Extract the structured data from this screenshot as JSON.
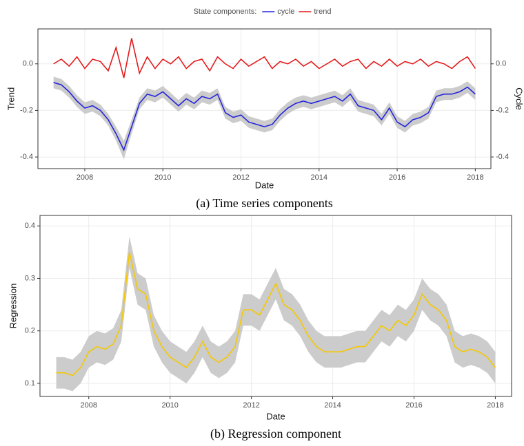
{
  "chart_data": [
    {
      "type": "line",
      "legend_title": "State components:",
      "legend": "top",
      "xlabel": "Date",
      "ylabel": "Trend",
      "y2label": "Cycle",
      "caption": "(a) Time series components",
      "grid": true,
      "band_color": "#cccccc",
      "x": [
        2007.2,
        2007.4,
        2007.6,
        2007.8,
        2008.0,
        2008.2,
        2008.4,
        2008.6,
        2008.8,
        2009.0,
        2009.2,
        2009.4,
        2009.6,
        2009.8,
        2010.0,
        2010.2,
        2010.4,
        2010.6,
        2010.8,
        2011.0,
        2011.2,
        2011.4,
        2011.6,
        2011.8,
        2012.0,
        2012.2,
        2012.4,
        2012.6,
        2012.8,
        2013.0,
        2013.2,
        2013.4,
        2013.6,
        2013.8,
        2014.0,
        2014.2,
        2014.4,
        2014.6,
        2014.8,
        2015.0,
        2015.2,
        2015.4,
        2015.6,
        2015.8,
        2016.0,
        2016.2,
        2016.4,
        2016.6,
        2016.8,
        2017.0,
        2017.2,
        2017.4,
        2017.6,
        2017.8,
        2018.0
      ],
      "xlim": [
        2006.8,
        2018.4
      ],
      "xticks": [
        2008,
        2010,
        2012,
        2014,
        2016,
        2018
      ],
      "ylim": [
        -0.45,
        0.15
      ],
      "yticks": [
        -0.4,
        -0.2,
        {
          "value": 0,
          "label": "0.0"
        }
      ],
      "y2lim": [
        -0.45,
        0.15
      ],
      "y2ticks": [
        -0.4,
        -0.2,
        {
          "value": 0,
          "label": "0.0"
        }
      ],
      "series": [
        {
          "name": "cycle",
          "color": "#2323dd",
          "axis": "y2",
          "values": [
            -0.08,
            -0.09,
            -0.12,
            -0.16,
            -0.19,
            -0.18,
            -0.2,
            -0.24,
            -0.3,
            -0.37,
            -0.27,
            -0.17,
            -0.13,
            -0.14,
            -0.12,
            -0.15,
            -0.18,
            -0.15,
            -0.17,
            -0.14,
            -0.15,
            -0.13,
            -0.21,
            -0.23,
            -0.22,
            -0.25,
            -0.26,
            -0.27,
            -0.26,
            -0.22,
            -0.19,
            -0.17,
            -0.16,
            -0.17,
            -0.16,
            -0.15,
            -0.14,
            -0.16,
            -0.13,
            -0.18,
            -0.19,
            -0.2,
            -0.24,
            -0.19,
            -0.25,
            -0.27,
            -0.24,
            -0.23,
            -0.21,
            -0.14,
            -0.13,
            -0.13,
            -0.12,
            -0.1,
            -0.13
          ],
          "upper": [
            -0.055,
            -0.065,
            -0.095,
            -0.135,
            -0.165,
            -0.155,
            -0.175,
            -0.215,
            -0.27,
            -0.33,
            -0.24,
            -0.145,
            -0.105,
            -0.115,
            -0.095,
            -0.125,
            -0.155,
            -0.125,
            -0.145,
            -0.115,
            -0.125,
            -0.105,
            -0.185,
            -0.205,
            -0.195,
            -0.225,
            -0.235,
            -0.245,
            -0.235,
            -0.195,
            -0.165,
            -0.145,
            -0.135,
            -0.145,
            -0.135,
            -0.125,
            -0.115,
            -0.135,
            -0.105,
            -0.155,
            -0.165,
            -0.175,
            -0.215,
            -0.165,
            -0.225,
            -0.245,
            -0.215,
            -0.205,
            -0.185,
            -0.115,
            -0.105,
            -0.105,
            -0.095,
            -0.075,
            -0.105
          ],
          "lower": [
            -0.105,
            -0.115,
            -0.145,
            -0.185,
            -0.215,
            -0.205,
            -0.225,
            -0.265,
            -0.33,
            -0.41,
            -0.3,
            -0.195,
            -0.155,
            -0.165,
            -0.145,
            -0.175,
            -0.205,
            -0.175,
            -0.195,
            -0.165,
            -0.175,
            -0.155,
            -0.235,
            -0.255,
            -0.245,
            -0.275,
            -0.285,
            -0.295,
            -0.285,
            -0.245,
            -0.215,
            -0.195,
            -0.185,
            -0.195,
            -0.185,
            -0.175,
            -0.165,
            -0.185,
            -0.155,
            -0.205,
            -0.215,
            -0.225,
            -0.265,
            -0.215,
            -0.275,
            -0.295,
            -0.265,
            -0.255,
            -0.235,
            -0.165,
            -0.155,
            -0.155,
            -0.145,
            -0.125,
            -0.155
          ]
        },
        {
          "name": "trend",
          "color": "#e31a1c",
          "values": [
            0.0,
            0.02,
            -0.01,
            0.03,
            -0.02,
            0.02,
            0.01,
            -0.03,
            0.07,
            -0.06,
            0.11,
            -0.04,
            0.03,
            -0.02,
            0.02,
            0.0,
            0.03,
            -0.02,
            0.01,
            0.02,
            -0.03,
            0.03,
            0.0,
            -0.02,
            0.02,
            -0.01,
            0.01,
            0.03,
            -0.02,
            0.01,
            0.0,
            0.02,
            -0.01,
            0.01,
            -0.02,
            0.0,
            0.02,
            -0.01,
            0.01,
            0.02,
            -0.02,
            0.01,
            -0.01,
            0.02,
            -0.01,
            0.01,
            0.0,
            0.02,
            -0.01,
            0.01,
            0.0,
            -0.02,
            0.01,
            0.03,
            -0.02
          ]
        }
      ]
    },
    {
      "type": "line",
      "xlabel": "Date",
      "ylabel": "Regression",
      "caption": "(b) Regression component",
      "grid": true,
      "band_color": "#cccccc",
      "x": [
        2007.2,
        2007.4,
        2007.6,
        2007.8,
        2008.0,
        2008.2,
        2008.4,
        2008.6,
        2008.8,
        2009.0,
        2009.2,
        2009.4,
        2009.6,
        2009.8,
        2010.0,
        2010.2,
        2010.4,
        2010.6,
        2010.8,
        2011.0,
        2011.2,
        2011.4,
        2011.6,
        2011.8,
        2012.0,
        2012.2,
        2012.4,
        2012.6,
        2012.8,
        2013.0,
        2013.2,
        2013.4,
        2013.6,
        2013.8,
        2014.0,
        2014.2,
        2014.4,
        2014.6,
        2014.8,
        2015.0,
        2015.2,
        2015.4,
        2015.6,
        2015.8,
        2016.0,
        2016.2,
        2016.4,
        2016.6,
        2016.8,
        2017.0,
        2017.2,
        2017.4,
        2017.6,
        2017.8,
        2018.0
      ],
      "xlim": [
        2006.8,
        2018.4
      ],
      "xticks": [
        2008,
        2010,
        2012,
        2014,
        2016,
        2018
      ],
      "ylim": [
        0.075,
        0.42
      ],
      "yticks": [
        0.1,
        0.2,
        0.3,
        0.4
      ],
      "series": [
        {
          "name": "regression",
          "color": "#f5c800",
          "values": [
            0.12,
            0.12,
            0.115,
            0.13,
            0.16,
            0.17,
            0.165,
            0.175,
            0.21,
            0.35,
            0.28,
            0.27,
            0.2,
            0.17,
            0.15,
            0.14,
            0.13,
            0.15,
            0.18,
            0.15,
            0.14,
            0.15,
            0.17,
            0.24,
            0.24,
            0.23,
            0.26,
            0.29,
            0.25,
            0.24,
            0.22,
            0.19,
            0.17,
            0.16,
            0.16,
            0.16,
            0.165,
            0.17,
            0.17,
            0.19,
            0.21,
            0.2,
            0.22,
            0.21,
            0.23,
            0.27,
            0.25,
            0.24,
            0.22,
            0.17,
            0.16,
            0.165,
            0.16,
            0.15,
            0.13
          ],
          "upper": [
            0.15,
            0.15,
            0.145,
            0.16,
            0.19,
            0.2,
            0.195,
            0.205,
            0.24,
            0.38,
            0.31,
            0.3,
            0.23,
            0.2,
            0.18,
            0.17,
            0.16,
            0.18,
            0.21,
            0.18,
            0.17,
            0.18,
            0.2,
            0.27,
            0.27,
            0.26,
            0.29,
            0.32,
            0.28,
            0.27,
            0.25,
            0.22,
            0.2,
            0.19,
            0.19,
            0.19,
            0.195,
            0.2,
            0.2,
            0.22,
            0.24,
            0.23,
            0.25,
            0.24,
            0.26,
            0.3,
            0.28,
            0.27,
            0.25,
            0.2,
            0.19,
            0.195,
            0.19,
            0.18,
            0.16
          ],
          "lower": [
            0.09,
            0.09,
            0.085,
            0.1,
            0.13,
            0.14,
            0.135,
            0.145,
            0.18,
            0.32,
            0.25,
            0.24,
            0.17,
            0.14,
            0.12,
            0.11,
            0.1,
            0.12,
            0.15,
            0.12,
            0.11,
            0.12,
            0.14,
            0.21,
            0.21,
            0.2,
            0.23,
            0.26,
            0.22,
            0.21,
            0.19,
            0.16,
            0.14,
            0.13,
            0.13,
            0.13,
            0.135,
            0.14,
            0.14,
            0.16,
            0.18,
            0.17,
            0.19,
            0.18,
            0.2,
            0.24,
            0.22,
            0.21,
            0.19,
            0.14,
            0.13,
            0.135,
            0.13,
            0.12,
            0.1
          ]
        }
      ]
    }
  ]
}
